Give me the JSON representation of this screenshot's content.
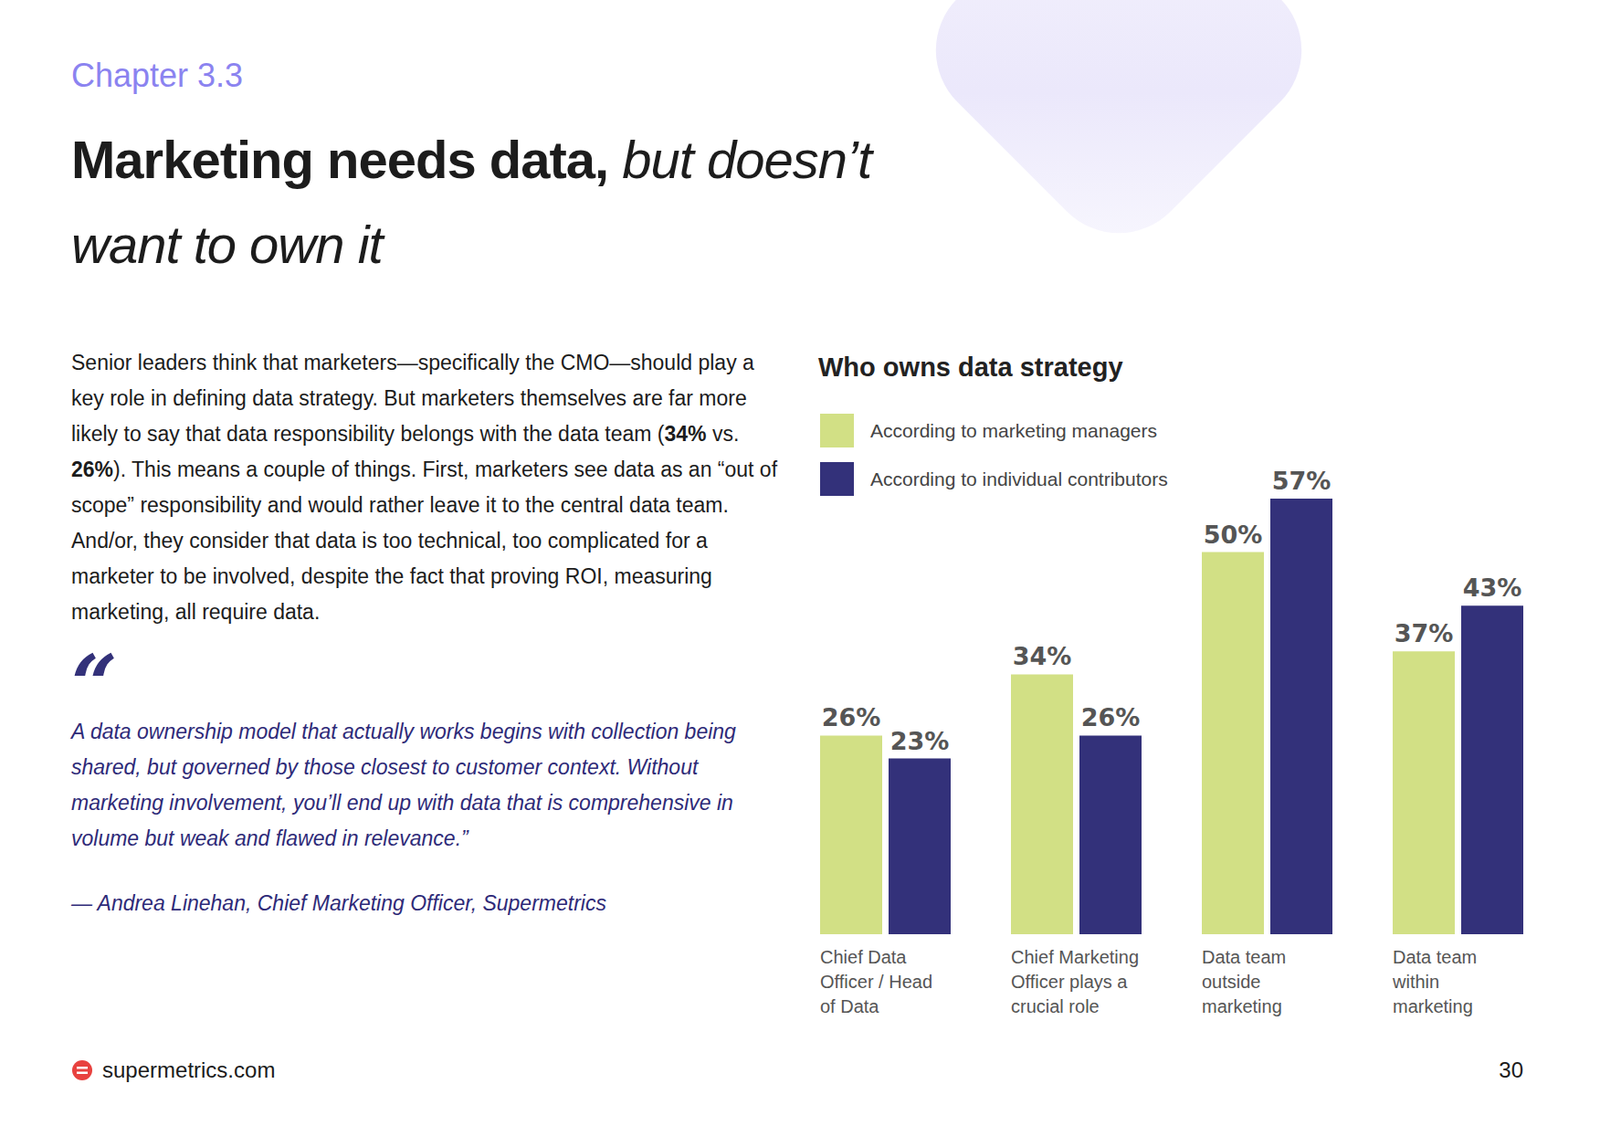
{
  "chapter": "Chapter 3.3",
  "title": [
    "Marketing needs data,",
    "but doesn’t want to own it"
  ],
  "body": [
    {
      "text": "Senior leaders think that marketers—specifically the CMO—should play a key role in defining data strategy. But marketers themselves are far more likely to say that data responsibility belongs with the data team ("
    },
    {
      "text": "34%",
      "bold": true
    },
    {
      "text": " vs. "
    },
    {
      "text": "26%",
      "bold": true
    },
    {
      "text": "). This means a couple of things. First, marketers see data as an “out of scope” responsibility and would rather leave it to the central data team. And/or, they consider that data is too technical, too complicated for a marketer to be involved, despite the fact that proving ROI, measuring marketing, all require data."
    }
  ],
  "quote": {
    "mark": "“",
    "text": "A data ownership model that actually works begins with collection being shared, but governed by those closest to customer context. Without marketing involvement, you’ll end up with data that is comprehensive in volume but weak and flawed in relevance.”",
    "attribution": "— Andrea Linehan, Chief Marketing Officer, Supermetrics"
  },
  "footer": {
    "site": "supermetrics.com",
    "page": 30
  },
  "chart_data": {
    "type": "bar",
    "title": "Who owns data strategy",
    "categories": [
      "Chief Data Officer / Head of Data",
      "Chief Marketing Officer plays a crucial role",
      "Data team outside marketing",
      "Data team within marketing"
    ],
    "series": [
      {
        "name": "According to marketing managers",
        "color": "#d2e085",
        "values": [
          26,
          34,
          50,
          37
        ],
        "value_labels": [
          "26%",
          "34%",
          "50%",
          "37%"
        ]
      },
      {
        "name": "According to individual contributors",
        "color": "#33317a",
        "values": [
          23,
          26,
          57,
          43
        ],
        "value_labels": [
          "23%",
          "26%",
          "57%",
          "43%"
        ]
      }
    ],
    "ylim": [
      0,
      57
    ],
    "data_labels": true,
    "tick_labels": "x",
    "legend": "top-left",
    "grid": false
  }
}
